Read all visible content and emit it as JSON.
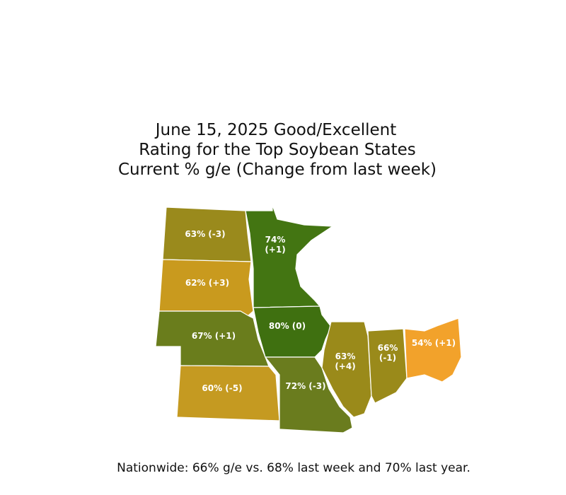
{
  "title": [
    "June 15, 2025 Good/Excellent",
    "Rating for the Top Soybean States",
    "Current % g/e (Change from last week)"
  ],
  "regions": [
    {
      "label_lines": [
        "63% (-3)"
      ],
      "color": "#9a8a1c"
    },
    {
      "label_lines": [
        "62% (+3)"
      ],
      "color": "#c99a1e"
    },
    {
      "label_lines": [
        "74%",
        "(+1)"
      ],
      "color": "#437512"
    },
    {
      "label_lines": [
        "67% (+1)"
      ],
      "color": "#6a7d1c"
    },
    {
      "label_lines": [
        "80% (0)"
      ],
      "color": "#3f7010"
    },
    {
      "label_lines": [
        "60% (-5)"
      ],
      "color": "#c59a21"
    },
    {
      "label_lines": [
        "72% (-3)"
      ],
      "color": "#6a7c1e"
    },
    {
      "label_lines": [
        "63%",
        "(+4)"
      ],
      "color": "#9a8a1a"
    },
    {
      "label_lines": [
        "66%",
        "(-1)"
      ],
      "color": "#9a8a1a"
    },
    {
      "label_lines": [
        "54% (+1)"
      ],
      "color": "#f2a22b"
    }
  ],
  "footer": "Nationwide: 66% g/e vs. 68% last week and 70% last year."
}
